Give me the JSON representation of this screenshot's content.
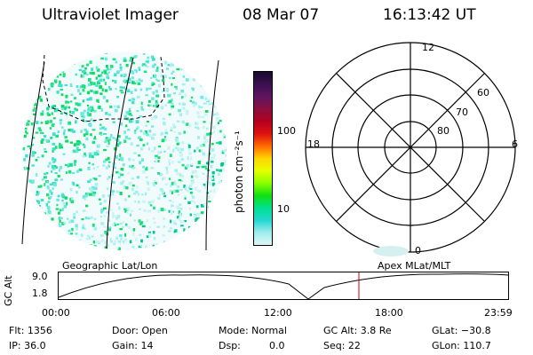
{
  "header": {
    "title": "Ultraviolet Imager",
    "date": "08 Mar 07",
    "time": "16:13:42 UT"
  },
  "colorbar": {
    "label": "photon cm⁻²s⁻¹",
    "ticks": [
      "100",
      "10"
    ],
    "colors": [
      "#1a0a2e",
      "#3b1050",
      "#5e1560",
      "#8a1040",
      "#b40020",
      "#dd1010",
      "#ff6a00",
      "#ffd400",
      "#e6ff00",
      "#8aff00",
      "#10e010",
      "#00e090",
      "#20d8d0",
      "#a0ecec",
      "#dff6f6"
    ]
  },
  "polar_plot": {
    "mlt_labels": {
      "top": "12",
      "left": "18",
      "right": "6",
      "bottom": "0"
    },
    "lat_labels": [
      "60",
      "70",
      "80"
    ]
  },
  "timeline": {
    "left_label": "Geographic Lat/Lon",
    "right_label": "Apex  MLat/MLT",
    "y_axis_title": "GC Alt",
    "y_ticks": [
      "9.0",
      "1.8"
    ],
    "x_ticks": [
      "00:00",
      "06:00",
      "12:00",
      "18:00",
      "23:59"
    ],
    "current_time_color": "#cc0000"
  },
  "info": {
    "flt": "Flt: 1356",
    "ip": "IP: 36.0",
    "door": "Door: Open",
    "gain": "Gain: 14",
    "mode": "Mode: Normal",
    "dsp_label": "Dsp:",
    "dsp_value": "0.0",
    "gc_alt": "GC Alt: 3.8 Re",
    "seq": "Seq: 22",
    "glat": "GLat: −30.8",
    "glon": "GLon: 110.7"
  }
}
